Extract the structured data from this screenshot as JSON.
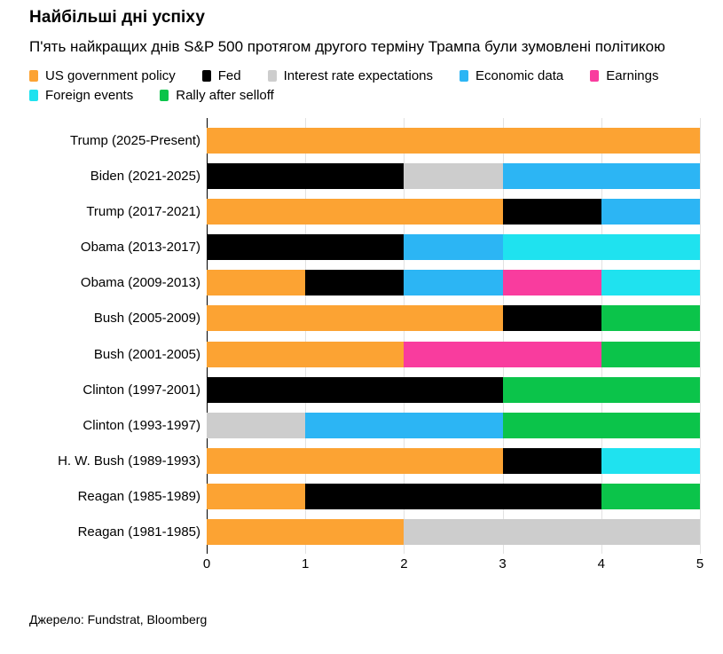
{
  "header": {
    "title": "Найбільші дні успіху",
    "subtitle": "П'ять найкращих днів S&P 500 протягом другого терміну Трампа були зумовлені політикою"
  },
  "source": "Джерело: Fundstrat, Bloomberg",
  "chart_data": {
    "type": "bar",
    "orientation": "horizontal",
    "stacked": true,
    "title": "Найбільші дні успіху",
    "xlabel": "",
    "ylabel": "",
    "xlim": [
      0,
      5
    ],
    "x_ticks": [
      "0",
      "1",
      "2",
      "3",
      "4",
      "5"
    ],
    "grid": "vertical",
    "legend_position": "top",
    "categories": [
      "Trump (2025-Present)",
      "Biden (2021-2025)",
      "Trump (2017-2021)",
      "Obama (2013-2017)",
      "Obama (2009-2013)",
      "Bush (2005-2009)",
      "Bush (2001-2005)",
      "Clinton (1997-2001)",
      "Clinton (1993-1997)",
      "H. W. Bush (1989-1993)",
      "Reagan (1985-1989)",
      "Reagan (1981-1985)"
    ],
    "series": [
      {
        "name": "US government policy",
        "color": "#FCA333",
        "values": [
          5,
          0,
          3,
          0,
          1,
          3,
          2,
          0,
          0,
          3,
          1,
          2
        ]
      },
      {
        "name": "Fed",
        "color": "#000000",
        "values": [
          0,
          2,
          1,
          2,
          1,
          1,
          0,
          3,
          0,
          1,
          3,
          0
        ]
      },
      {
        "name": "Interest rate expectations",
        "color": "#CDCDCD",
        "values": [
          0,
          1,
          0,
          0,
          0,
          0,
          0,
          0,
          1,
          0,
          0,
          3
        ]
      },
      {
        "name": "Economic data",
        "color": "#2CB5F4",
        "values": [
          0,
          2,
          1,
          1,
          1,
          0,
          0,
          0,
          2,
          0,
          0,
          0
        ]
      },
      {
        "name": "Earnings",
        "color": "#F93C9E",
        "values": [
          0,
          0,
          0,
          0,
          1,
          0,
          2,
          0,
          0,
          0,
          0,
          0
        ]
      },
      {
        "name": "Foreign events",
        "color": "#1FE2EF",
        "values": [
          0,
          0,
          0,
          2,
          1,
          0,
          0,
          0,
          0,
          1,
          0,
          0
        ]
      },
      {
        "name": "Rally after selloff",
        "color": "#0BC44A",
        "values": [
          0,
          0,
          0,
          0,
          0,
          1,
          1,
          2,
          2,
          0,
          1,
          0
        ]
      }
    ]
  }
}
